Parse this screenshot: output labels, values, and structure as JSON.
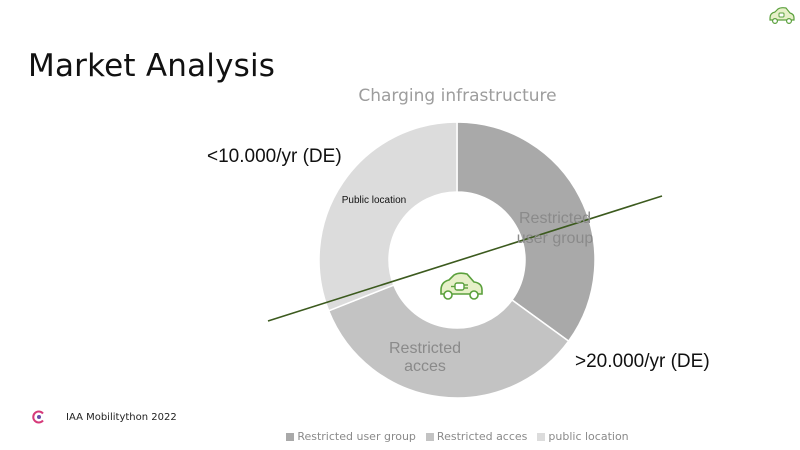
{
  "slide": {
    "title": "Market Analysis",
    "footer": "IAA Mobilitython 2022"
  },
  "annotations": {
    "low": "<10.000/yr (DE)",
    "high": ">20.000/yr (DE)"
  },
  "icons": {
    "center": "ev-car-plug-icon",
    "corner": "ev-car-plug-icon",
    "footer_logo": "event-logo-icon"
  },
  "colors": {
    "restricted_user_group": "#a9a9a9",
    "restricted_acces": "#c3c3c3",
    "public_location": "#dcdcdc",
    "trend_line": "#3c5a1e",
    "icon_green": "#5aa03c",
    "icon_fill": "#e6f0c8"
  },
  "chart_data": {
    "type": "pie",
    "title": "Charging infrastructure",
    "categories": [
      "Restricted user group",
      "Restricted acces",
      "public location"
    ],
    "slice_labels": [
      "Restricted\nuser group",
      "Restricted\nacces",
      "Public location"
    ],
    "values": [
      35,
      34,
      31
    ],
    "legend": "bottom"
  }
}
